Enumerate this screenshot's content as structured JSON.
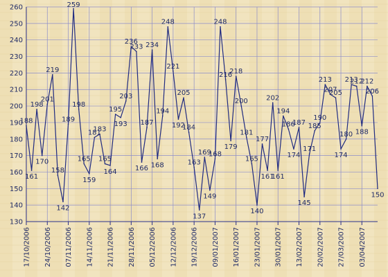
{
  "chart_data": {
    "type": "line",
    "ylim": [
      130,
      260
    ],
    "ytick_step": 10,
    "grid": true,
    "x_tick_labels": [
      "17/10/2006",
      "24/10/2006",
      "07/11/2006",
      "14/11/2006",
      "21/11/2006",
      "28/11/2006",
      "05/12/2006",
      "12/12/2006",
      "19/12/2006",
      "09/01/2007",
      "16/01/2007",
      "23/01/2007",
      "30/01/2007",
      "13/02/2007",
      "20/02/2007",
      "27/03/2007",
      "03/04/2007"
    ],
    "series": [
      {
        "values": [
          188,
          161,
          198,
          170,
          201,
          219,
          158,
          142,
          189,
          259,
          198,
          165,
          159,
          181,
          183,
          165,
          164,
          195,
          193,
          203,
          236,
          233,
          166,
          187,
          234,
          168,
          194,
          248,
          221,
          192,
          205,
          184,
          163,
          137,
          169,
          149,
          168,
          248,
          216,
          179,
          218,
          200,
          181,
          165,
          140,
          177,
          161,
          202,
          161,
          194,
          186,
          174,
          187,
          145,
          171,
          185,
          190,
          213,
          207,
          205,
          174,
          180,
          213,
          212,
          188,
          212,
          206,
          150
        ],
        "labels": [
          "188",
          "161",
          "198",
          "170",
          "201",
          "219",
          "158",
          "142",
          "189",
          "259",
          "198",
          "165",
          "159",
          "181",
          "183",
          "165",
          "164",
          "195",
          "193",
          "203",
          "236",
          "233",
          "166",
          "187",
          "234",
          "168",
          "194",
          "248",
          "221",
          "192",
          "205",
          "184",
          "163",
          "137",
          "169",
          "149",
          "168",
          "248",
          "216",
          "179",
          "218",
          "200",
          "181",
          "165",
          "140",
          "177",
          "161",
          "202",
          "161",
          "194",
          "186",
          "174",
          "187",
          "145",
          "171",
          "185",
          "190",
          "213",
          "207",
          "205",
          "174",
          "180",
          "213",
          "212",
          "188",
          "212",
          "206",
          "150"
        ]
      }
    ],
    "colors": {
      "line": "#1f2a80",
      "grid": "#8c8cc8",
      "axis": "#2a2f8a",
      "text": "#1f2a66",
      "background": "#F0E3BE"
    }
  }
}
